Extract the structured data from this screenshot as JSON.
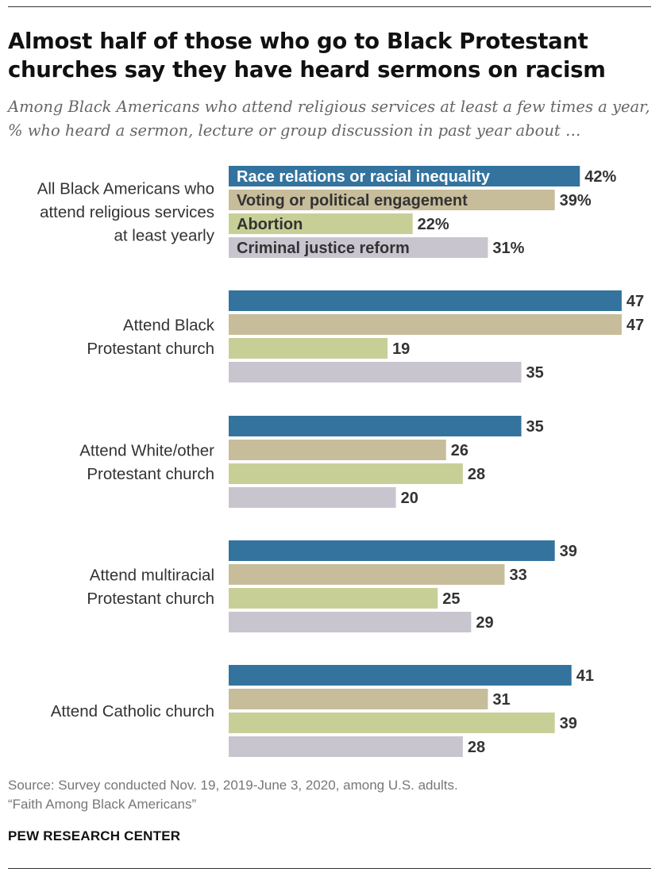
{
  "title": "Almost half of those who go to Black Protestant churches say they have heard sermons on racism",
  "subtitle": "Among Black Americans who attend religious services at least a few times a year, % who heard a sermon, lecture or group discussion in past year about …",
  "source": "Source: Survey conducted Nov. 19, 2019-June 3, 2020, among U.S. adults.",
  "note": "“Faith Among Black Americans”",
  "brand": "PEW RESEARCH CENTER",
  "chart_data": {
    "type": "bar",
    "orientation": "horizontal",
    "title": "Almost half of those who go to Black Protestant churches say they have heard sermons on racism",
    "xlim": [
      0,
      47
    ],
    "grid": false,
    "legend": "inline labels on first group",
    "categories": [
      [
        "All Black Americans who",
        "attend religious services",
        "at least yearly"
      ],
      [
        "Attend Black",
        "Protestant church"
      ],
      [
        "Attend White/other",
        "Protestant church"
      ],
      [
        "Attend multiracial",
        "Protestant church"
      ],
      [
        "Attend Catholic church"
      ]
    ],
    "series": [
      {
        "name": "Race relations or racial inequality",
        "color": "#33739e",
        "label_color": "#ffffff",
        "values": [
          42,
          47,
          35,
          39,
          41
        ]
      },
      {
        "name": "Voting or political engagement",
        "color": "#c7bd9b",
        "label_color": "#333333",
        "values": [
          39,
          47,
          26,
          33,
          31
        ]
      },
      {
        "name": "Abortion",
        "color": "#c7cf97",
        "label_color": "#333333",
        "values": [
          22,
          19,
          28,
          25,
          39
        ]
      },
      {
        "name": "Criminal justice reform",
        "color": "#c8c5cf",
        "label_color": "#333333",
        "values": [
          31,
          35,
          20,
          29,
          28
        ]
      }
    ],
    "value_suffix_first_group": "%"
  }
}
